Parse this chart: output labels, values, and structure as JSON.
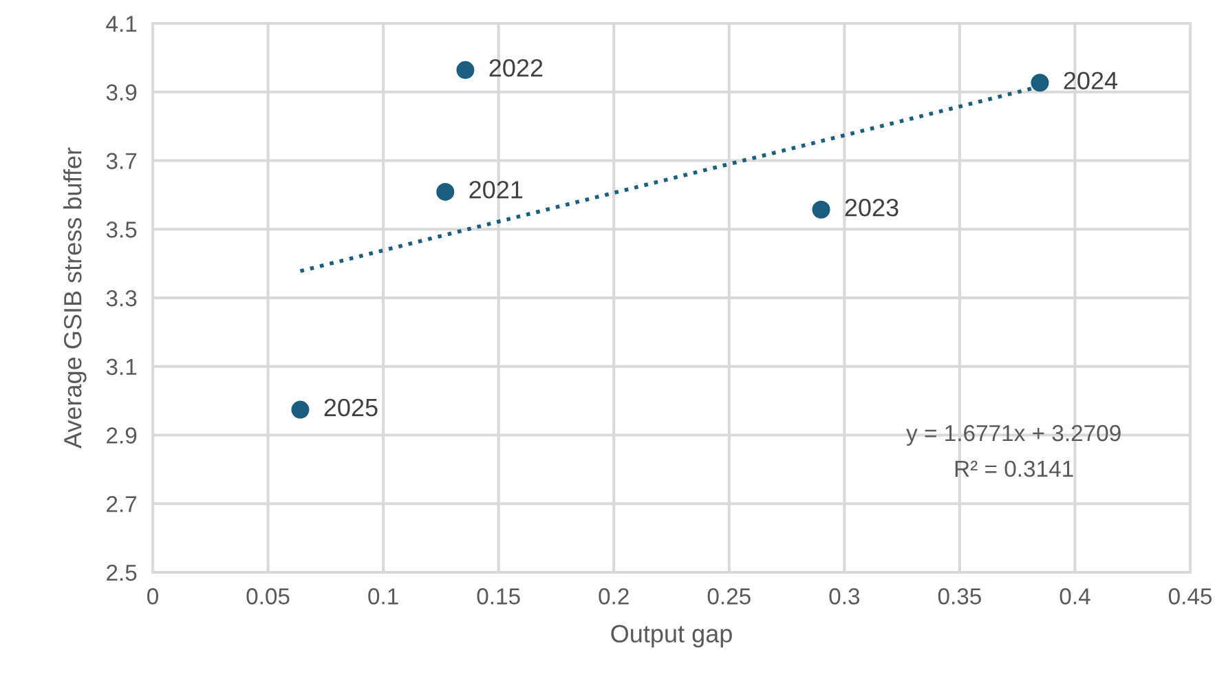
{
  "chart_data": {
    "type": "scatter",
    "xlabel": "Output gap",
    "ylabel": "Average GSIB stress buffer",
    "xlim": [
      0,
      0.45
    ],
    "xticks": [
      0,
      0.05,
      0.1,
      0.15,
      0.2,
      0.25,
      0.3,
      0.35,
      0.4,
      0.45
    ],
    "ylim": [
      2.5,
      4.1
    ],
    "yticks": [
      2.5,
      2.7,
      2.9,
      3.1,
      3.3,
      3.5,
      3.7,
      3.9,
      4.1
    ],
    "grid": true,
    "legend": false,
    "marker": "circle",
    "series": [
      {
        "color": "#1a5e80",
        "x": [
          0.1269,
          0.1356,
          0.2899,
          0.3848,
          0.064
        ],
        "values": [
          3.609,
          3.964,
          3.557,
          3.927,
          2.974
        ]
      },
      {
        "type": "line",
        "color": "#1a5e80",
        "line_style": "dotted",
        "marker": "none",
        "x": [
          0.064,
          0.3848
        ],
        "values": [
          3.378,
          3.916
        ]
      }
    ],
    "annotations": [
      {
        "text": "2021",
        "x": 0.1269,
        "y": 3.609
      },
      {
        "text": "2022",
        "x": 0.1356,
        "y": 3.964
      },
      {
        "text": "2023",
        "x": 0.2899,
        "y": 3.557
      },
      {
        "text": "2024",
        "x": 0.3848,
        "y": 3.927
      },
      {
        "text": "2025",
        "x": 0.064,
        "y": 2.974
      },
      "y = 1.6771x + 3.2709",
      "R² = 0.3141"
    ]
  }
}
